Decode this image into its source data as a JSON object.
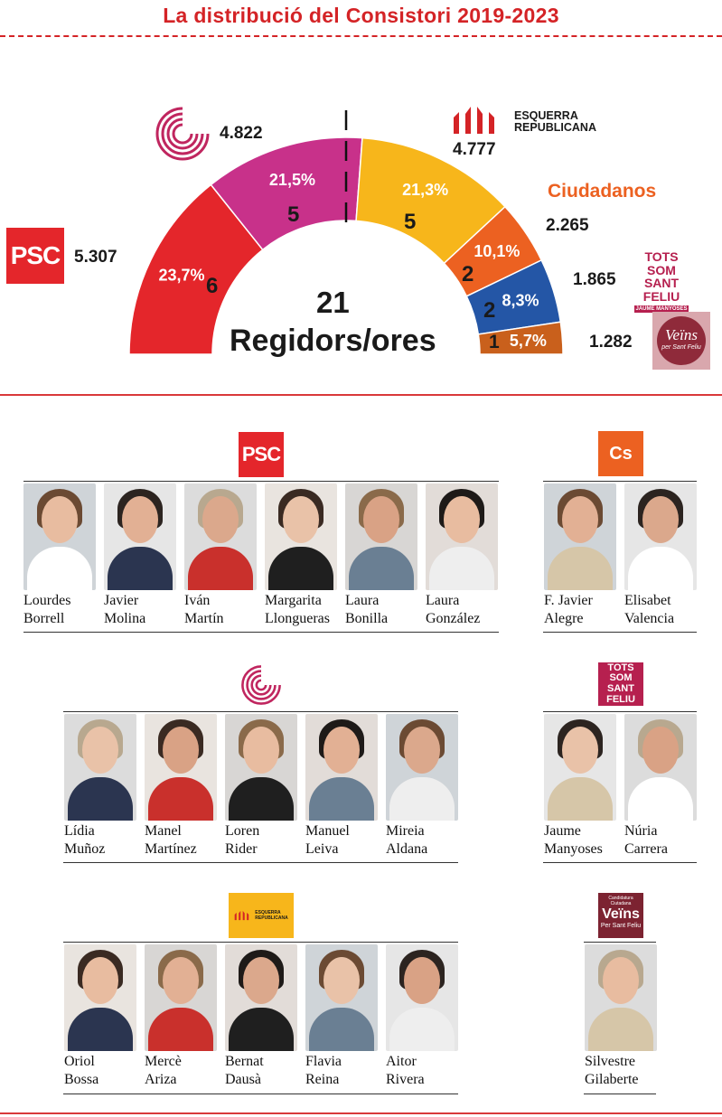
{
  "title": "La distribució del Consistori 2019-2023",
  "chart_data": {
    "type": "pie",
    "total_seats": "21",
    "total_label": "Regidors/ores",
    "slices": [
      {
        "party": "PSC",
        "votes": "5.307",
        "seats": 6,
        "pct": "23,7%",
        "color": "#e4262b"
      },
      {
        "party": "En Comú",
        "votes": "4.822",
        "seats": 5,
        "pct": "21,5%",
        "color": "#c8318a"
      },
      {
        "party": "ESQUERRA REPUBLICANA",
        "votes": "4.777",
        "seats": 5,
        "pct": "21,3%",
        "color": "#f7b61b"
      },
      {
        "party": "Ciudadanos",
        "votes": "2.265",
        "seats": 2,
        "pct": "10,1%",
        "color": "#ec6121"
      },
      {
        "party": "TOTS SOM SANT FELIU",
        "votes": "1.865",
        "seats": 2,
        "pct": "8,3%",
        "color": "#2456a6"
      },
      {
        "party": "Veïns per Sant Feliu",
        "votes": "1.282",
        "seats": 1,
        "pct": "5,7%",
        "color": "#c9601c"
      }
    ]
  },
  "logos": {
    "psc": "PSC",
    "erc_line1": "ESQUERRA",
    "erc_line2": "REPUBLICANA",
    "cs_full": "Ciudadanos",
    "cs_short": "Cs",
    "tots_line1": "TOTS SOM",
    "tots_line2": "SANT FELIU",
    "tots_sub": "JAUME MANYOSES",
    "veins": "Veïns",
    "veins_sub": "per Sant Feliu",
    "veins_top": "Candidatura Ciutadana",
    "veins_bottom": "Per Sant Feliu"
  },
  "groups": {
    "psc": [
      {
        "first": "Lourdes",
        "last": "Borrell"
      },
      {
        "first": "Javier",
        "last": "Molina"
      },
      {
        "first": "Iván",
        "last": "Martín"
      },
      {
        "first": "Margarita",
        "last": "Llongueras"
      },
      {
        "first": "Laura",
        "last": "Bonilla"
      },
      {
        "first": "Laura",
        "last": "González"
      }
    ],
    "cs": [
      {
        "first": "F. Javier",
        "last": "Alegre"
      },
      {
        "first": "Elisabet",
        "last": "Valencia"
      }
    ],
    "comu": [
      {
        "first": "Lídia",
        "last": "Muñoz"
      },
      {
        "first": "Manel",
        "last": "Martínez"
      },
      {
        "first": "Loren",
        "last": "Rider"
      },
      {
        "first": "Manuel",
        "last": "Leiva"
      },
      {
        "first": "Mireia",
        "last": "Aldana"
      }
    ],
    "tots": [
      {
        "first": "Jaume",
        "last": "Manyoses"
      },
      {
        "first": "Núria",
        "last": "Carrera"
      }
    ],
    "erc": [
      {
        "first": "Oriol",
        "last": "Bossa"
      },
      {
        "first": "Mercè",
        "last": "Ariza"
      },
      {
        "first": "Bernat",
        "last": "Dausà"
      },
      {
        "first": "Flavia",
        "last": "Reina"
      },
      {
        "first": "Aitor",
        "last": "Rivera"
      }
    ],
    "veins": [
      {
        "first": "Silvestre",
        "last": "Gilaberte"
      }
    ]
  }
}
